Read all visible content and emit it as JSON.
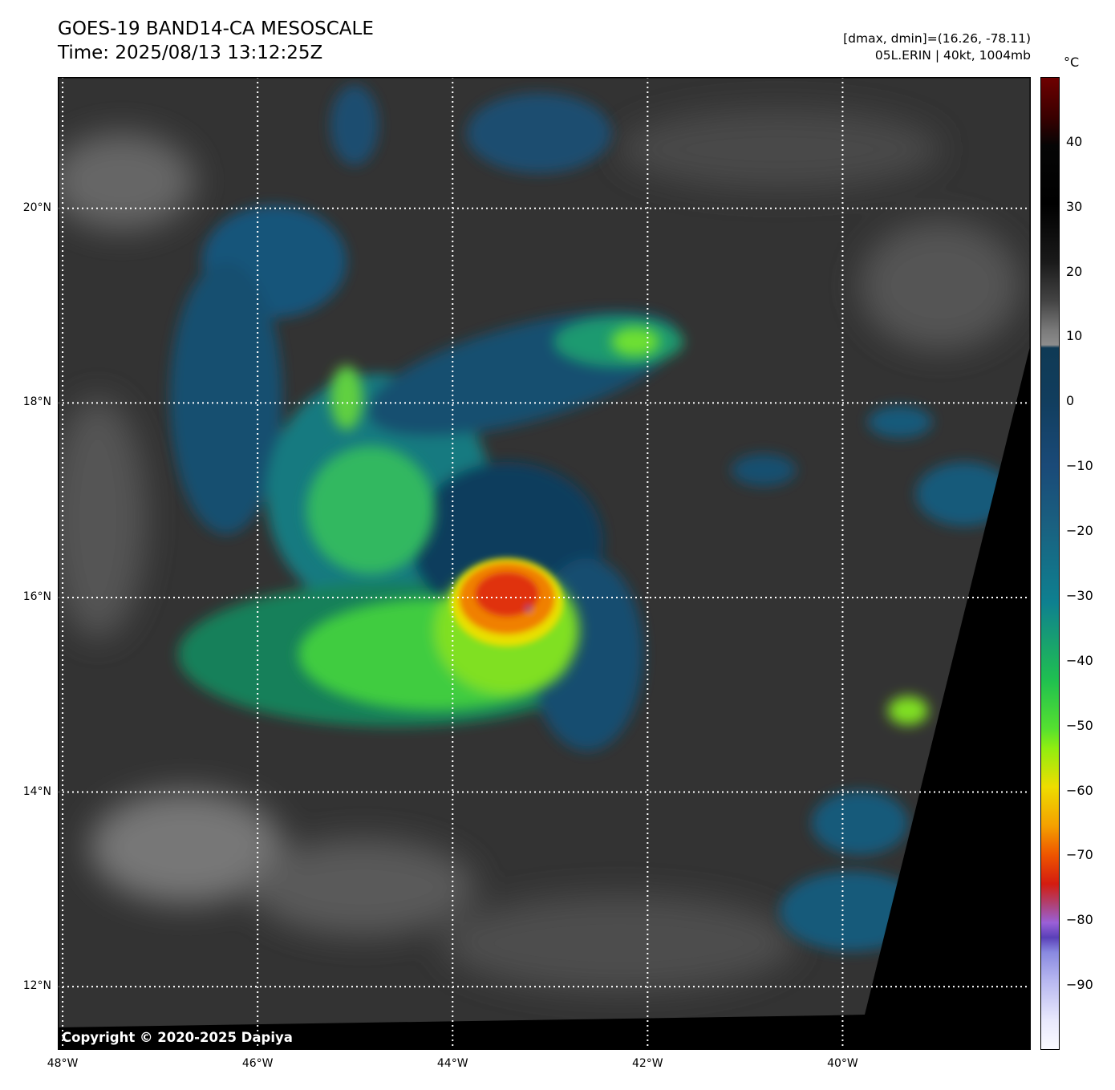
{
  "header": {
    "title_line1": "GOES-19 BAND14-CA MESOSCALE",
    "title_line2": "Time: 2025/08/13 13:12:25Z",
    "info_line1": "[dmax, dmin]=(16.26, -78.11)",
    "info_line2": "05L.ERIN | 40kt, 1004mb"
  },
  "map": {
    "lon_range": [
      -48.05,
      -38.07
    ],
    "lat_range": [
      11.35,
      21.35
    ],
    "lon_ticks": [
      {
        "v": -48,
        "label": "48°W"
      },
      {
        "v": -46,
        "label": "46°W"
      },
      {
        "v": -44,
        "label": "44°W"
      },
      {
        "v": -42,
        "label": "42°W"
      },
      {
        "v": -40,
        "label": "40°W"
      }
    ],
    "lat_ticks": [
      {
        "v": 20,
        "label": "20°N"
      },
      {
        "v": 18,
        "label": "18°N"
      },
      {
        "v": 16,
        "label": "16°N"
      },
      {
        "v": 14,
        "label": "14°N"
      },
      {
        "v": 12,
        "label": "12°N"
      }
    ],
    "storm_center": {
      "lon": -43.3,
      "lat": 16.0
    },
    "copyright": "Copyright © 2020-2025 Dapiya"
  },
  "colorbar": {
    "unit": "°C",
    "range": [
      -100,
      50
    ],
    "ticks": [
      {
        "v": 40,
        "label": "40"
      },
      {
        "v": 30,
        "label": "30"
      },
      {
        "v": 20,
        "label": "20"
      },
      {
        "v": 10,
        "label": "10"
      },
      {
        "v": 0,
        "label": "0"
      },
      {
        "v": -10,
        "label": "−10"
      },
      {
        "v": -20,
        "label": "−20"
      },
      {
        "v": -30,
        "label": "−30"
      },
      {
        "v": -40,
        "label": "−40"
      },
      {
        "v": -50,
        "label": "−50"
      },
      {
        "v": -60,
        "label": "−60"
      },
      {
        "v": -70,
        "label": "−70"
      },
      {
        "v": -80,
        "label": "−80"
      },
      {
        "v": -90,
        "label": "−90"
      }
    ]
  }
}
